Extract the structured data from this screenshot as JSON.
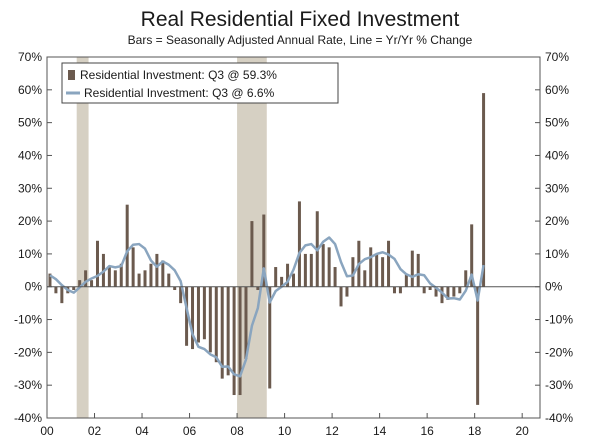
{
  "chart_data": {
    "type": "bar",
    "title": "Real Residential Fixed Investment",
    "subtitle": "Bars = Seasonally Adjusted Annual Rate, Line = Yr/Yr % Change",
    "ylim": [
      -40,
      70
    ],
    "yticks": [
      -40,
      -30,
      -20,
      -10,
      0,
      10,
      20,
      30,
      40,
      50,
      60,
      70
    ],
    "yticks_labels": [
      "-40%",
      "-30%",
      "-20%",
      "-10%",
      "0%",
      "10%",
      "20%",
      "30%",
      "40%",
      "50%",
      "60%",
      "70%"
    ],
    "xlim": [
      2000.0,
      2020.75
    ],
    "xticks": [
      2000,
      2002,
      2004,
      2006,
      2008,
      2010,
      2012,
      2014,
      2016,
      2018,
      2020
    ],
    "xtick_labels": [
      "00",
      "02",
      "04",
      "06",
      "08",
      "10",
      "12",
      "14",
      "16",
      "18",
      "20"
    ],
    "legend": {
      "bar_label": "Residential Investment: Q3 @ 59.3%",
      "line_label": "Residential Investment: Q3 @ 6.6%",
      "placement": "top-left"
    },
    "recessions": [
      [
        2001.25,
        2001.75
      ],
      [
        2008.0,
        2009.25
      ]
    ],
    "colors": {
      "bar": "#6b5a4e",
      "line": "#8aa5bf",
      "recession": "#d6d0c3"
    },
    "series": [
      {
        "name": "Residential Investment: Q3 @ 59.3%",
        "kind": "bar",
        "values": [
          4,
          -2,
          -5,
          -2,
          -1,
          2,
          5,
          2,
          14,
          10,
          6,
          5,
          7,
          25,
          12,
          4,
          5,
          7,
          10,
          8,
          4,
          -1,
          -5,
          -18,
          -19,
          -17,
          -16,
          -20,
          -23,
          -28,
          -27,
          -33,
          -33,
          -22,
          20,
          -1,
          22,
          -31,
          6,
          3,
          7,
          4,
          26,
          10,
          10,
          23,
          13,
          12,
          6,
          -6,
          -3,
          9,
          14,
          5,
          12,
          10,
          9,
          14,
          -2,
          -2,
          4,
          11,
          10,
          -2,
          -1,
          -3,
          -5,
          -4,
          -3,
          -2,
          5,
          19,
          -36,
          59
        ]
      },
      {
        "name": "Residential Investment: Q3 @ 6.6%",
        "kind": "line",
        "values": [
          3.5,
          2.3,
          0.5,
          -1.0,
          -1.8,
          -0.2,
          1.5,
          2.5,
          3.3,
          4.6,
          6.3,
          5.9,
          6.3,
          10.8,
          12.8,
          13.0,
          11.6,
          8.0,
          6.1,
          7.7,
          6.7,
          5.0,
          1.7,
          -6.5,
          -14.5,
          -18.3,
          -19.0,
          -20.6,
          -21.5,
          -24.4,
          -24.3,
          -26.7,
          -27.3,
          -22.2,
          -11.9,
          -6.5,
          5.6,
          -4.8,
          -1.3,
          0.0,
          1.5,
          5.2,
          10.3,
          12.6,
          13.0,
          11.1,
          13.7,
          15.0,
          13.0,
          7.5,
          3.2,
          3.4,
          6.9,
          8.4,
          9.0,
          10.0,
          10.5,
          9.8,
          8.5,
          5.4,
          3.8,
          3.0,
          3.8,
          3.5,
          1.0,
          -0.3,
          -1.8,
          -3.6,
          -3.5,
          -3.9,
          -1.2,
          3.7,
          -4.2,
          6.6
        ]
      }
    ]
  }
}
